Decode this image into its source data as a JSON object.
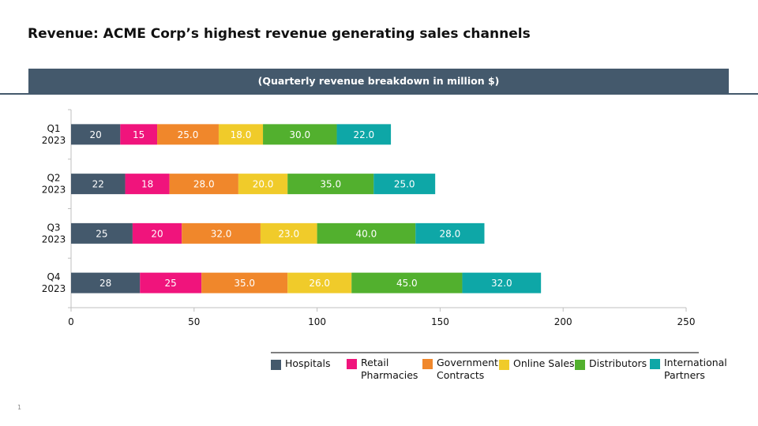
{
  "title": "Revenue: ACME Corp’s highest revenue generating sales channels",
  "subtitle": "(Quarterly revenue breakdown in million $)",
  "page_number": "1",
  "chart_data": {
    "type": "bar",
    "orientation": "horizontal",
    "stacked": true,
    "categories": [
      [
        "Q1",
        "2023"
      ],
      [
        "Q2",
        "2023"
      ],
      [
        "Q3",
        "2023"
      ],
      [
        "Q4",
        "2023"
      ]
    ],
    "series": [
      {
        "name": "Hospitals",
        "color": "#44596c",
        "values": [
          20,
          22,
          25,
          28
        ],
        "labels": [
          "20",
          "22",
          "25",
          "28"
        ]
      },
      {
        "name": "Retail Pharmacies",
        "legend_lines": [
          "Retail",
          "Pharmacies"
        ],
        "color": "#f0147c",
        "values": [
          15,
          18,
          20,
          25
        ],
        "labels": [
          "15",
          "18",
          "20",
          "25"
        ]
      },
      {
        "name": "Government Contracts",
        "legend_lines": [
          "Government",
          "Contracts"
        ],
        "color": "#f0872b",
        "values": [
          25,
          28,
          32,
          35
        ],
        "labels": [
          "25.0",
          "28.0",
          "32.0",
          "35.0"
        ]
      },
      {
        "name": "Online Sales",
        "legend_lines": [
          "Online Sales"
        ],
        "color": "#f0cb2a",
        "values": [
          18,
          20,
          23,
          26
        ],
        "labels": [
          "18.0",
          "20.0",
          "23.0",
          "26.0"
        ]
      },
      {
        "name": "Distributors",
        "legend_lines": [
          "Distributors"
        ],
        "color": "#52b02e",
        "values": [
          30,
          35,
          40,
          45
        ],
        "labels": [
          "30.0",
          "35.0",
          "40.0",
          "45.0"
        ]
      },
      {
        "name": "International Partners",
        "legend_lines": [
          "International",
          "Partners"
        ],
        "color": "#0ea7a7",
        "values": [
          22,
          25,
          28,
          32
        ],
        "labels": [
          "22.0",
          "25.0",
          "28.0",
          "32.0"
        ]
      }
    ],
    "xlim": [
      0,
      250
    ],
    "xticks": [
      0,
      50,
      100,
      150,
      200,
      250
    ],
    "grid": false,
    "legend_position": "bottom"
  }
}
